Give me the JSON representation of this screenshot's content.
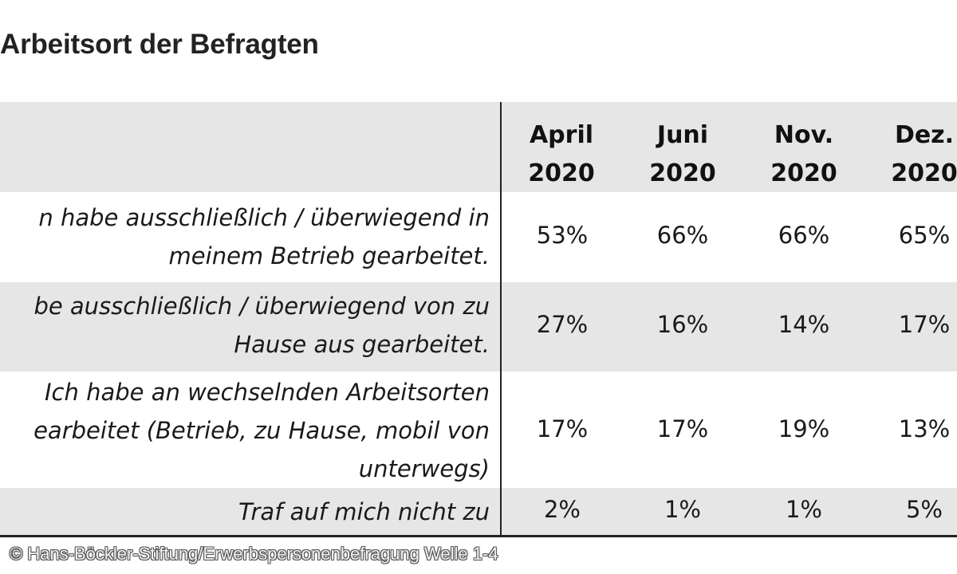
{
  "title": "Arbeitsort der Befragten",
  "copyright": "© Hans-Böckler-Stiftung/Erwerbspersonenbefragung Welle 1-4",
  "colors": {
    "header_background": "#e6e6e6",
    "row_shading": "#e6e6e6",
    "rule_lines": "#222222"
  },
  "chart_data": {
    "type": "table",
    "title": "Arbeitsort der Befragten",
    "columns": [
      {
        "line1": "April",
        "line2": "2020"
      },
      {
        "line1": "Juni",
        "line2": "2020"
      },
      {
        "line1": "Nov.",
        "line2": "2020"
      },
      {
        "line1": "Dez.",
        "line2": "2020"
      }
    ],
    "rows": [
      {
        "label_lines": [
          "n habe ausschließlich / überwiegend in",
          "meinem Betrieb gearbeitet."
        ],
        "values": [
          "53%",
          "66%",
          "66%",
          "65%"
        ]
      },
      {
        "label_lines": [
          "be ausschließlich / überwiegend von zu",
          "Hause aus gearbeitet."
        ],
        "values": [
          "27%",
          "16%",
          "14%",
          "17%"
        ]
      },
      {
        "label_lines": [
          "Ich habe an wechselnden Arbeitsorten",
          "earbeitet (Betrieb, zu Hause, mobil von",
          "unterwegs)"
        ],
        "values": [
          "17%",
          "17%",
          "19%",
          "13%"
        ]
      },
      {
        "label_lines": [
          "Traf auf mich nicht zu"
        ],
        "values": [
          "2%",
          "1%",
          "1%",
          "5%"
        ]
      }
    ]
  }
}
